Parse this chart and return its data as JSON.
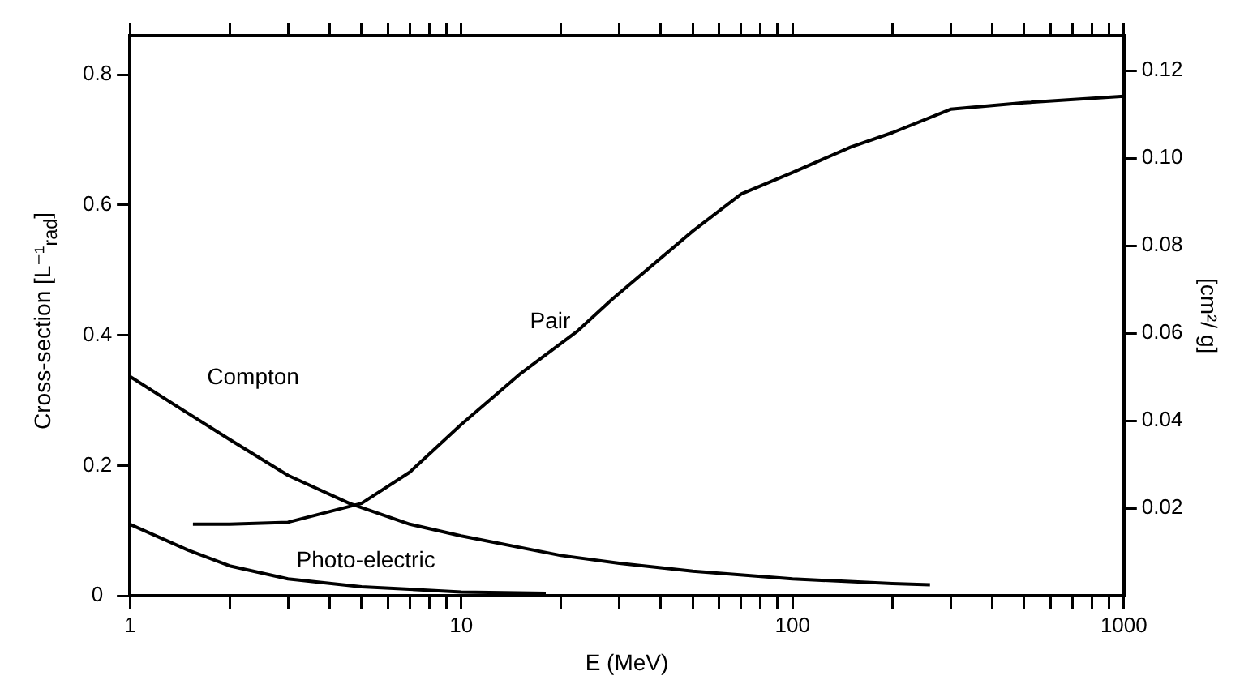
{
  "chart_data": {
    "type": "line",
    "xlabel": "E (MeV)",
    "ylabel": "Cross-section  [L⁻¹$_{rad}$]",
    "y2label": "[cm²/ g]",
    "log": "x",
    "xlim": [
      1,
      1000
    ],
    "xticks": [
      1,
      {
        "value": 2,
        "label": null
      },
      {
        "value": 3,
        "label": null
      },
      {
        "value": 4,
        "label": null
      },
      {
        "value": 5,
        "label": null
      },
      {
        "value": 6,
        "label": null
      },
      {
        "value": 7,
        "label": null
      },
      {
        "value": 8,
        "label": null
      },
      {
        "value": 9,
        "label": null
      },
      10,
      {
        "value": 20,
        "label": null
      },
      {
        "value": 30,
        "label": null
      },
      {
        "value": 40,
        "label": null
      },
      {
        "value": 50,
        "label": null
      },
      {
        "value": 60,
        "label": null
      },
      {
        "value": 70,
        "label": null
      },
      {
        "value": 80,
        "label": null
      },
      {
        "value": 90,
        "label": null
      },
      100,
      {
        "value": 200,
        "label": null
      },
      {
        "value": 300,
        "label": null
      },
      {
        "value": 400,
        "label": null
      },
      {
        "value": 500,
        "label": null
      },
      {
        "value": 600,
        "label": null
      },
      {
        "value": 700,
        "label": null
      },
      {
        "value": 800,
        "label": null
      },
      {
        "value": 900,
        "label": null
      },
      1000
    ],
    "ylim": [
      0,
      0.86
    ],
    "yticks": [
      0,
      0.2,
      0.4,
      0.6,
      0.8
    ],
    "y2lim": [
      0,
      0.128
    ],
    "y2ticks": [
      0.02,
      0.04,
      0.06,
      {
        "value": 0.08,
        "label": "0.08"
      },
      {
        "value": 0.1,
        "label": "0.10"
      },
      0.12
    ],
    "grid": false,
    "series": [
      {
        "name": "Compton",
        "color": "#000000",
        "x": [
          1,
          1.5,
          2,
          3,
          4.6,
          7,
          10,
          20,
          30,
          50,
          100,
          200,
          260
        ],
        "values": [
          0.337,
          0.28,
          0.24,
          0.185,
          0.142,
          0.11,
          0.092,
          0.062,
          0.05,
          0.038,
          0.026,
          0.019,
          0.017
        ]
      },
      {
        "name": "Pair",
        "color": "#000000",
        "x": [
          1.55,
          2,
          3,
          5,
          7,
          10,
          15,
          22.5,
          28.5,
          50,
          70,
          100,
          150,
          200,
          300,
          500,
          1000
        ],
        "values": [
          0.11,
          0.11,
          0.113,
          0.142,
          0.19,
          0.263,
          0.34,
          0.407,
          0.455,
          0.56,
          0.617,
          0.65,
          0.689,
          0.711,
          0.747,
          0.757,
          0.767
        ]
      },
      {
        "name": "Photo-electric",
        "color": "#000000",
        "x": [
          1,
          1.5,
          2,
          3,
          5,
          10,
          18
        ],
        "values": [
          0.11,
          0.07,
          0.046,
          0.026,
          0.014,
          0.006,
          0.004
        ]
      }
    ]
  }
}
